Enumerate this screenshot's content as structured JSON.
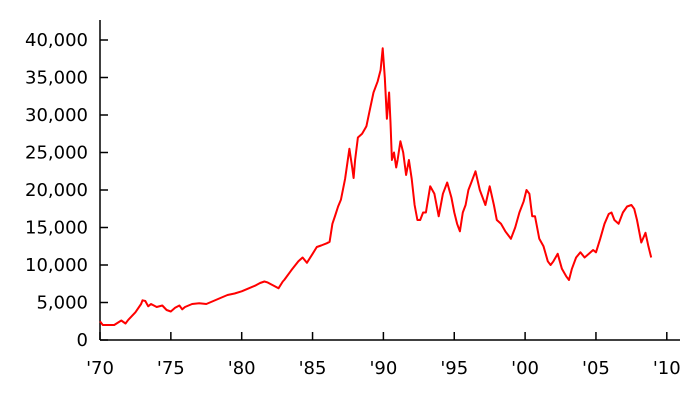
{
  "chart_data": {
    "type": "line",
    "title": "",
    "xlabel": "",
    "ylabel": "",
    "xlim": [
      1970,
      2010
    ],
    "ylim": [
      0,
      40000
    ],
    "grid": false,
    "legend": "none",
    "line_color": "#ff0000",
    "axis_color": "#000000",
    "x_ticks": [
      {
        "value": 1970,
        "label": "'70"
      },
      {
        "value": 1975,
        "label": "'75"
      },
      {
        "value": 1980,
        "label": "'80"
      },
      {
        "value": 1985,
        "label": "'85"
      },
      {
        "value": 1990,
        "label": "'90"
      },
      {
        "value": 1995,
        "label": "'95"
      },
      {
        "value": 2000,
        "label": "'00"
      },
      {
        "value": 2005,
        "label": "'05"
      },
      {
        "value": 2010,
        "label": "'10"
      }
    ],
    "y_ticks": [
      {
        "value": 0,
        "label": "0"
      },
      {
        "value": 5000,
        "label": "5,000"
      },
      {
        "value": 10000,
        "label": "10,000"
      },
      {
        "value": 15000,
        "label": "15,000"
      },
      {
        "value": 20000,
        "label": "20,000"
      },
      {
        "value": 25000,
        "label": "25,000"
      },
      {
        "value": 30000,
        "label": "30,000"
      },
      {
        "value": 35000,
        "label": "35,000"
      },
      {
        "value": 40000,
        "label": "40,000"
      }
    ],
    "series": [
      {
        "x": [
          1970.0,
          1970.2,
          1970.5,
          1971.0,
          1971.5,
          1971.8,
          1972.0,
          1972.5,
          1972.9,
          1973.0,
          1973.2,
          1973.4,
          1973.6,
          1974.0,
          1974.4,
          1974.7,
          1975.0,
          1975.3,
          1975.6,
          1975.8,
          1976.0,
          1976.5,
          1977.0,
          1977.5,
          1978.0,
          1978.5,
          1979.0,
          1979.5,
          1980.0,
          1980.5,
          1981.0,
          1981.3,
          1981.6,
          1981.8,
          1982.0,
          1982.3,
          1982.6,
          1982.9,
          1983.0,
          1983.5,
          1984.0,
          1984.3,
          1984.6,
          1985.0,
          1985.3,
          1985.6,
          1986.0,
          1986.2,
          1986.4,
          1986.6,
          1986.8,
          1987.0,
          1987.3,
          1987.6,
          1987.8,
          1987.9,
          1988.0,
          1988.2,
          1988.5,
          1988.8,
          1989.0,
          1989.3,
          1989.6,
          1989.8,
          1989.95,
          1990.1,
          1990.25,
          1990.4,
          1990.5,
          1990.6,
          1990.75,
          1990.9,
          1991.0,
          1991.2,
          1991.4,
          1991.6,
          1991.8,
          1992.0,
          1992.2,
          1992.4,
          1992.6,
          1992.8,
          1993.0,
          1993.3,
          1993.6,
          1993.9,
          1994.2,
          1994.5,
          1994.8,
          1995.0,
          1995.2,
          1995.4,
          1995.6,
          1995.8,
          1996.0,
          1996.2,
          1996.5,
          1996.8,
          1997.0,
          1997.2,
          1997.5,
          1997.8,
          1998.0,
          1998.3,
          1998.6,
          1998.8,
          1999.0,
          1999.3,
          1999.6,
          1999.9,
          2000.1,
          2000.3,
          2000.5,
          2000.7,
          2001.0,
          2001.3,
          2001.6,
          2001.8,
          2002.0,
          2002.3,
          2002.6,
          2002.9,
          2003.1,
          2003.3,
          2003.6,
          2003.9,
          2004.2,
          2004.5,
          2004.8,
          2005.0,
          2005.3,
          2005.6,
          2005.9,
          2006.1,
          2006.3,
          2006.6,
          2006.9,
          2007.2,
          2007.5,
          2007.7,
          2007.9,
          2008.2,
          2008.5,
          2008.7,
          2008.9
        ],
        "y": [
          2500,
          2000,
          2000,
          2000,
          2600,
          2200,
          2700,
          3700,
          4800,
          5300,
          5200,
          4500,
          4800,
          4400,
          4600,
          4000,
          3800,
          4300,
          4600,
          4100,
          4400,
          4800,
          4900,
          4800,
          5200,
          5600,
          6000,
          6200,
          6500,
          6900,
          7300,
          7600,
          7800,
          7700,
          7500,
          7200,
          6900,
          7800,
          8000,
          9300,
          10500,
          11000,
          10300,
          11500,
          12400,
          12600,
          12900,
          13100,
          15500,
          16600,
          17800,
          18700,
          21500,
          25500,
          23000,
          21600,
          24000,
          27000,
          27500,
          28500,
          30300,
          33000,
          34500,
          36000,
          38900,
          35000,
          29500,
          33000,
          29000,
          24000,
          25000,
          23000,
          24000,
          26500,
          25000,
          22000,
          24000,
          21500,
          18000,
          16000,
          16000,
          17000,
          17000,
          20500,
          19500,
          16500,
          19500,
          21000,
          19000,
          17000,
          15500,
          14500,
          17000,
          18000,
          20000,
          21000,
          22500,
          20000,
          19000,
          18000,
          20500,
          18000,
          16000,
          15500,
          14500,
          14000,
          13500,
          15000,
          17000,
          18500,
          20000,
          19500,
          16500,
          16500,
          13500,
          12500,
          10500,
          10000,
          10500,
          11500,
          9500,
          8500,
          8000,
          9500,
          11000,
          11700,
          11000,
          11500,
          12000,
          11700,
          13500,
          15500,
          16800,
          17000,
          16000,
          15500,
          17000,
          17800,
          18000,
          17500,
          16000,
          13000,
          14300,
          12500,
          11000
        ],
        "color": "#ff0000"
      }
    ]
  }
}
